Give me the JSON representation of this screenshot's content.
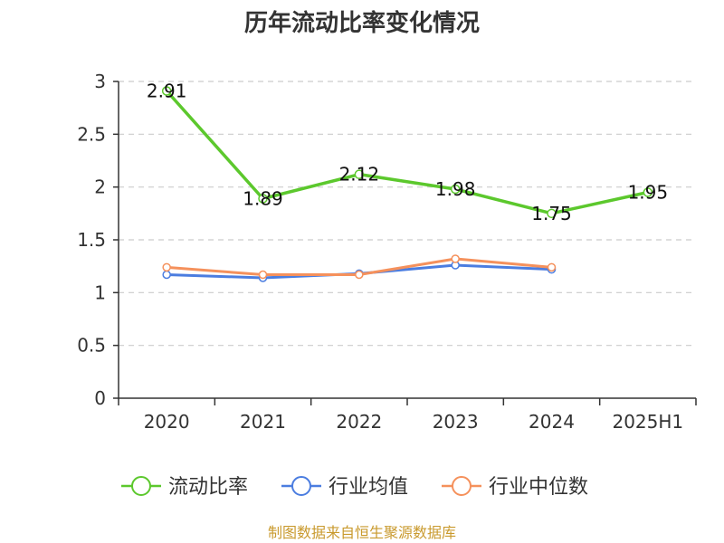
{
  "chart_data": {
    "type": "line",
    "title": "历年流动比率变化情况",
    "categories": [
      "2020",
      "2021",
      "2022",
      "2023",
      "2024",
      "2025H1"
    ],
    "ylim": [
      0,
      3
    ],
    "yticks": [
      0,
      0.5,
      1,
      1.5,
      2,
      2.5,
      3
    ],
    "ytick_labels": [
      "0",
      "0.5",
      "1",
      "1.5",
      "2",
      "2.5",
      "3"
    ],
    "grid": true,
    "legend_position": "bottom",
    "series": [
      {
        "name": "流动比率",
        "color": "#5cc82d",
        "values": [
          2.91,
          1.89,
          2.12,
          1.98,
          1.75,
          1.95
        ],
        "labels": [
          "2.91",
          "1.89",
          "2.12",
          "1.98",
          "1.75",
          "1.95"
        ]
      },
      {
        "name": "行业均值",
        "color": "#4b7de0",
        "values": [
          1.17,
          1.14,
          1.18,
          1.26,
          1.22,
          null
        ],
        "labels": []
      },
      {
        "name": "行业中位数",
        "color": "#f5915c",
        "values": [
          1.24,
          1.17,
          1.17,
          1.32,
          1.24,
          null
        ],
        "labels": []
      }
    ],
    "source": "制图数据来自恒生聚源数据库",
    "source_color": "#c99a2e"
  }
}
